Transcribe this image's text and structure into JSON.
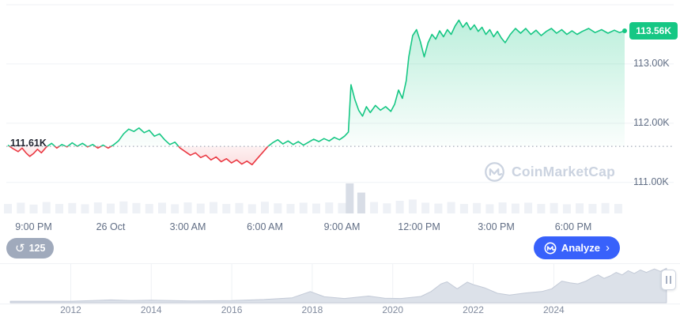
{
  "price_axis": {
    "current_badge": "113.56K",
    "baseline_label": "111.61K"
  },
  "toolbar": {
    "history_count": "125",
    "history_icon": "anticlockwise-arrow",
    "analyze_label": "Analyze",
    "analyze_chevron": "›"
  },
  "watermark": {
    "text": "CoinMarketCap",
    "icon": "coinmarketcap-logo"
  },
  "colors": {
    "green": "#16C784",
    "red": "#EA3943",
    "blue": "#3861FB",
    "axis_text": "#616E85",
    "grid": "#EFF2F5",
    "watermark": "#CBD3E0",
    "history_pill": "#A0AABC"
  },
  "chart_data": [
    {
      "type": "line",
      "title": "Price (24h) vs previous close baseline",
      "unit": "K USD",
      "baseline": 111.61,
      "current": 113.56,
      "ylim": [
        110.45,
        114.08
      ],
      "grid_values": [
        114,
        113,
        112,
        111
      ],
      "y_ticks": [
        {
          "value": 113.0,
          "label": "113.00K"
        },
        {
          "value": 112.0,
          "label": "112.00K"
        },
        {
          "value": 111.0,
          "label": "111.00K"
        }
      ],
      "x_labels": [
        "9:00 PM",
        "26 Oct",
        "3:00 AM",
        "6:00 AM",
        "9:00 AM",
        "12:00 PM",
        "3:00 PM",
        "6:00 PM"
      ],
      "x_label_hours": [
        1,
        4,
        7,
        10,
        13,
        16,
        19,
        22
      ],
      "points": [
        [
          0,
          111.63
        ],
        [
          0.2,
          111.57
        ],
        [
          0.4,
          111.52
        ],
        [
          0.55,
          111.58
        ],
        [
          0.7,
          111.5
        ],
        [
          0.85,
          111.44
        ],
        [
          1.0,
          111.49
        ],
        [
          1.15,
          111.56
        ],
        [
          1.3,
          111.5
        ],
        [
          1.5,
          111.6
        ],
        [
          1.7,
          111.66
        ],
        [
          1.9,
          111.58
        ],
        [
          2.1,
          111.64
        ],
        [
          2.3,
          111.6
        ],
        [
          2.5,
          111.67
        ],
        [
          2.7,
          111.61
        ],
        [
          2.9,
          111.66
        ],
        [
          3.1,
          111.6
        ],
        [
          3.3,
          111.64
        ],
        [
          3.5,
          111.58
        ],
        [
          3.7,
          111.63
        ],
        [
          3.9,
          111.58
        ],
        [
          4.1,
          111.63
        ],
        [
          4.3,
          111.7
        ],
        [
          4.5,
          111.82
        ],
        [
          4.7,
          111.9
        ],
        [
          4.9,
          111.86
        ],
        [
          5.1,
          111.92
        ],
        [
          5.3,
          111.84
        ],
        [
          5.5,
          111.88
        ],
        [
          5.7,
          111.78
        ],
        [
          5.9,
          111.82
        ],
        [
          6.1,
          111.72
        ],
        [
          6.3,
          111.64
        ],
        [
          6.5,
          111.68
        ],
        [
          6.7,
          111.58
        ],
        [
          6.9,
          111.52
        ],
        [
          7.1,
          111.46
        ],
        [
          7.3,
          111.5
        ],
        [
          7.5,
          111.42
        ],
        [
          7.7,
          111.46
        ],
        [
          7.9,
          111.38
        ],
        [
          8.1,
          111.43
        ],
        [
          8.3,
          111.35
        ],
        [
          8.5,
          111.4
        ],
        [
          8.7,
          111.33
        ],
        [
          8.9,
          111.38
        ],
        [
          9.1,
          111.31
        ],
        [
          9.3,
          111.36
        ],
        [
          9.5,
          111.3
        ],
        [
          9.7,
          111.4
        ],
        [
          9.9,
          111.5
        ],
        [
          10.1,
          111.6
        ],
        [
          10.3,
          111.67
        ],
        [
          10.5,
          111.72
        ],
        [
          10.7,
          111.65
        ],
        [
          10.9,
          111.7
        ],
        [
          11.1,
          111.64
        ],
        [
          11.3,
          111.69
        ],
        [
          11.5,
          111.63
        ],
        [
          11.7,
          111.68
        ],
        [
          11.9,
          111.73
        ],
        [
          12.1,
          111.69
        ],
        [
          12.3,
          111.74
        ],
        [
          12.5,
          111.7
        ],
        [
          12.7,
          111.76
        ],
        [
          12.9,
          111.72
        ],
        [
          13.1,
          111.78
        ],
        [
          13.25,
          111.85
        ],
        [
          13.35,
          112.65
        ],
        [
          13.5,
          112.4
        ],
        [
          13.65,
          112.22
        ],
        [
          13.8,
          112.12
        ],
        [
          13.95,
          112.28
        ],
        [
          14.1,
          112.18
        ],
        [
          14.3,
          112.3
        ],
        [
          14.5,
          112.22
        ],
        [
          14.7,
          112.28
        ],
        [
          14.9,
          112.2
        ],
        [
          15.05,
          112.32
        ],
        [
          15.2,
          112.56
        ],
        [
          15.35,
          112.42
        ],
        [
          15.5,
          112.72
        ],
        [
          15.6,
          113.12
        ],
        [
          15.75,
          113.48
        ],
        [
          15.9,
          113.58
        ],
        [
          16.05,
          113.38
        ],
        [
          16.2,
          113.12
        ],
        [
          16.35,
          113.36
        ],
        [
          16.5,
          113.5
        ],
        [
          16.65,
          113.42
        ],
        [
          16.8,
          113.56
        ],
        [
          16.95,
          113.46
        ],
        [
          17.1,
          113.58
        ],
        [
          17.25,
          113.5
        ],
        [
          17.4,
          113.64
        ],
        [
          17.55,
          113.74
        ],
        [
          17.7,
          113.62
        ],
        [
          17.85,
          113.7
        ],
        [
          18.0,
          113.58
        ],
        [
          18.15,
          113.66
        ],
        [
          18.3,
          113.55
        ],
        [
          18.45,
          113.62
        ],
        [
          18.6,
          113.5
        ],
        [
          18.75,
          113.58
        ],
        [
          18.9,
          113.46
        ],
        [
          19.05,
          113.55
        ],
        [
          19.2,
          113.44
        ],
        [
          19.35,
          113.36
        ],
        [
          19.55,
          113.5
        ],
        [
          19.75,
          113.6
        ],
        [
          19.95,
          113.52
        ],
        [
          20.15,
          113.6
        ],
        [
          20.35,
          113.5
        ],
        [
          20.55,
          113.57
        ],
        [
          20.75,
          113.48
        ],
        [
          20.95,
          113.55
        ],
        [
          21.15,
          113.6
        ],
        [
          21.35,
          113.52
        ],
        [
          21.55,
          113.58
        ],
        [
          21.75,
          113.5
        ],
        [
          21.95,
          113.56
        ],
        [
          22.15,
          113.5
        ],
        [
          22.35,
          113.55
        ],
        [
          22.6,
          113.6
        ],
        [
          22.85,
          113.53
        ],
        [
          23.1,
          113.58
        ],
        [
          23.35,
          113.52
        ],
        [
          23.6,
          113.57
        ],
        [
          23.8,
          113.53
        ],
        [
          24.0,
          113.56
        ]
      ],
      "volumes": [
        [
          0,
          0.3
        ],
        [
          0.5,
          0.34
        ],
        [
          1,
          0.28
        ],
        [
          1.5,
          0.36
        ],
        [
          2,
          0.3
        ],
        [
          2.5,
          0.33
        ],
        [
          3,
          0.29
        ],
        [
          3.5,
          0.35
        ],
        [
          4,
          0.31
        ],
        [
          4.5,
          0.38
        ],
        [
          5,
          0.33
        ],
        [
          5.5,
          0.3
        ],
        [
          6,
          0.34
        ],
        [
          6.5,
          0.29
        ],
        [
          7,
          0.35
        ],
        [
          7.5,
          0.31
        ],
        [
          8,
          0.36
        ],
        [
          8.5,
          0.3
        ],
        [
          9,
          0.33
        ],
        [
          9.5,
          0.29
        ],
        [
          10,
          0.37
        ],
        [
          10.5,
          0.32
        ],
        [
          11,
          0.3
        ],
        [
          11.5,
          0.34
        ],
        [
          12,
          0.31
        ],
        [
          12.5,
          0.35
        ],
        [
          13,
          0.33
        ],
        [
          13.3,
          0.95
        ],
        [
          13.75,
          0.66
        ],
        [
          14.25,
          0.36
        ],
        [
          14.75,
          0.32
        ],
        [
          15.25,
          0.4
        ],
        [
          15.75,
          0.44
        ],
        [
          16.25,
          0.34
        ],
        [
          16.75,
          0.31
        ],
        [
          17.25,
          0.36
        ],
        [
          17.75,
          0.3
        ],
        [
          18.25,
          0.33
        ],
        [
          18.75,
          0.29
        ],
        [
          19.25,
          0.35
        ],
        [
          19.75,
          0.31
        ],
        [
          20.25,
          0.34
        ],
        [
          20.75,
          0.3
        ],
        [
          21.25,
          0.33
        ],
        [
          21.75,
          0.29
        ],
        [
          22.25,
          0.32
        ],
        [
          22.75,
          0.3
        ],
        [
          23.25,
          0.33
        ],
        [
          23.75,
          0.3
        ]
      ]
    },
    {
      "type": "area",
      "title": "All-time range navigator",
      "xlim": [
        2010.4,
        2026.9
      ],
      "x_labels": [
        "2012",
        "2014",
        "2016",
        "2018",
        "2020",
        "2022",
        "2024"
      ],
      "grid_years": [
        2012,
        2014,
        2016,
        2018,
        2020,
        2022,
        2024
      ],
      "points": [
        [
          2010.5,
          0.02
        ],
        [
          2012,
          0.02
        ],
        [
          2013,
          0.06
        ],
        [
          2013.5,
          0.04
        ],
        [
          2014,
          0.05
        ],
        [
          2015,
          0.03
        ],
        [
          2016,
          0.04
        ],
        [
          2016.8,
          0.07
        ],
        [
          2017.5,
          0.12
        ],
        [
          2017.95,
          0.3
        ],
        [
          2018.3,
          0.15
        ],
        [
          2018.8,
          0.1
        ],
        [
          2019.4,
          0.17
        ],
        [
          2019.8,
          0.11
        ],
        [
          2020.2,
          0.1
        ],
        [
          2020.7,
          0.16
        ],
        [
          2020.95,
          0.3
        ],
        [
          2021.2,
          0.52
        ],
        [
          2021.35,
          0.58
        ],
        [
          2021.6,
          0.38
        ],
        [
          2021.85,
          0.57
        ],
        [
          2022.0,
          0.5
        ],
        [
          2022.3,
          0.4
        ],
        [
          2022.6,
          0.25
        ],
        [
          2022.9,
          0.2
        ],
        [
          2023.3,
          0.26
        ],
        [
          2023.7,
          0.3
        ],
        [
          2023.95,
          0.38
        ],
        [
          2024.2,
          0.6
        ],
        [
          2024.4,
          0.55
        ],
        [
          2024.6,
          0.52
        ],
        [
          2024.8,
          0.6
        ],
        [
          2024.95,
          0.7
        ],
        [
          2025.1,
          0.78
        ],
        [
          2025.25,
          0.68
        ],
        [
          2025.4,
          0.75
        ],
        [
          2025.55,
          0.85
        ],
        [
          2025.7,
          0.78
        ],
        [
          2025.85,
          0.9
        ],
        [
          2026.0,
          0.82
        ],
        [
          2026.15,
          0.92
        ],
        [
          2026.3,
          0.85
        ],
        [
          2026.5,
          0.95
        ],
        [
          2026.65,
          0.88
        ],
        [
          2026.8,
          0.97
        ]
      ]
    }
  ]
}
